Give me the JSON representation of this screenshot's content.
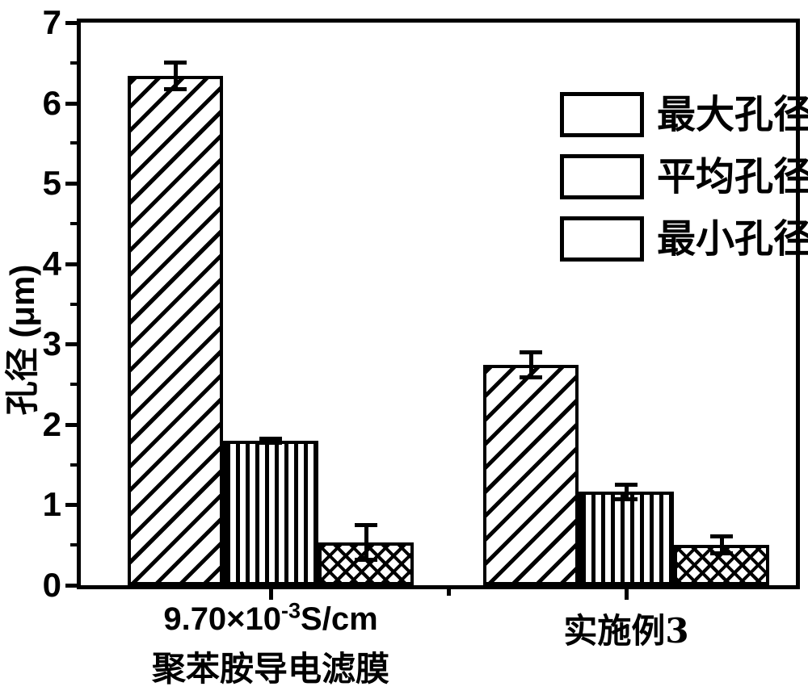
{
  "figure": {
    "background": "#ffffff",
    "foreground": "#000000"
  },
  "yaxis": {
    "title": "孔径 (μm)",
    "tick_labels": [
      "0",
      "1",
      "2",
      "3",
      "4",
      "5",
      "6",
      "7"
    ]
  },
  "xaxis": {
    "group1": {
      "value_base": "9.70×10",
      "value_sup": "-3",
      "value_unit": "S/cm",
      "line2": "聚苯胺导电滤膜"
    },
    "group2": {
      "label": "实施例3"
    }
  },
  "legend": {
    "items": [
      {
        "label": "最大孔径",
        "hatch": "diagonal"
      },
      {
        "label": "平均孔径",
        "hatch": "vertical"
      },
      {
        "label": "最小孔径",
        "hatch": "crosshatch"
      }
    ]
  },
  "chart_data": {
    "type": "bar",
    "title": "",
    "xlabel": "",
    "ylabel": "孔径 (μm)",
    "ylim": [
      0,
      7
    ],
    "yticks": [
      0,
      1,
      2,
      3,
      4,
      5,
      6,
      7
    ],
    "minor_tick_step": 0.5,
    "grid": false,
    "legend_position": "top-right",
    "categories": [
      "9.70×10⁻³S/cm 聚苯胺导电滤膜",
      "实施例3"
    ],
    "series": [
      {
        "name": "最大孔径",
        "hatch": "diagonal",
        "values": [
          6.34,
          2.74
        ],
        "errors": [
          0.17,
          0.16
        ]
      },
      {
        "name": "平均孔径",
        "hatch": "vertical",
        "values": [
          1.8,
          1.16
        ],
        "errors": [
          0.03,
          0.1
        ]
      },
      {
        "name": "最小孔径",
        "hatch": "crosshatch",
        "values": [
          0.53,
          0.5
        ],
        "errors": [
          0.22,
          0.11
        ]
      }
    ]
  }
}
